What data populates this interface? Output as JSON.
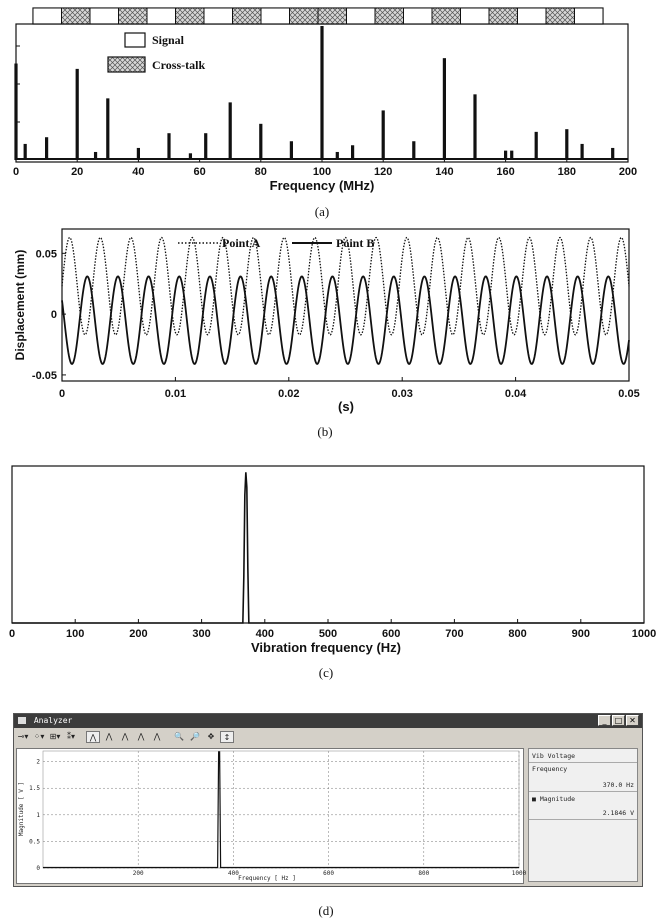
{
  "panel_a": {
    "caption": "(a)",
    "legend": {
      "signal": "Signal",
      "crosstalk": "Cross-talk"
    },
    "chart_data": {
      "type": "bar",
      "xlabel": "Frequency (MHz)",
      "xlim": [
        0,
        200
      ],
      "ylim": [
        0,
        1
      ],
      "xticks": [
        "0",
        "20",
        "40",
        "60",
        "80",
        "100",
        "120",
        "140",
        "160",
        "180",
        "200"
      ],
      "lines": [
        {
          "x": 0,
          "y": 0.72
        },
        {
          "x": 3,
          "y": 0.12
        },
        {
          "x": 10,
          "y": 0.17
        },
        {
          "x": 20,
          "y": 0.68
        },
        {
          "x": 26,
          "y": 0.06
        },
        {
          "x": 30,
          "y": 0.46
        },
        {
          "x": 40,
          "y": 0.09
        },
        {
          "x": 50,
          "y": 0.2
        },
        {
          "x": 57,
          "y": 0.05
        },
        {
          "x": 62,
          "y": 0.2
        },
        {
          "x": 70,
          "y": 0.43
        },
        {
          "x": 80,
          "y": 0.27
        },
        {
          "x": 90,
          "y": 0.14
        },
        {
          "x": 100,
          "y": 1.0
        },
        {
          "x": 105,
          "y": 0.06
        },
        {
          "x": 110,
          "y": 0.11
        },
        {
          "x": 120,
          "y": 0.37
        },
        {
          "x": 130,
          "y": 0.14
        },
        {
          "x": 140,
          "y": 0.76
        },
        {
          "x": 150,
          "y": 0.49
        },
        {
          "x": 160,
          "y": 0.07
        },
        {
          "x": 162,
          "y": 0.07
        },
        {
          "x": 170,
          "y": 0.21
        },
        {
          "x": 180,
          "y": 0.23
        },
        {
          "x": 185,
          "y": 0.12
        },
        {
          "x": 195,
          "y": 0.09
        }
      ],
      "strip": [
        "signal",
        "crosstalk",
        "signal",
        "crosstalk",
        "signal",
        "crosstalk",
        "signal",
        "crosstalk",
        "signal",
        "crosstalk",
        "crosstalk",
        "signal",
        "crosstalk",
        "signal",
        "crosstalk",
        "signal",
        "crosstalk",
        "signal",
        "crosstalk",
        "signal"
      ]
    }
  },
  "panel_b": {
    "caption": "(b)",
    "chart_data": {
      "type": "line",
      "xlabel": "(s)",
      "ylabel": "Displacement (mm)",
      "xlim": [
        0,
        0.05
      ],
      "ylim": [
        -0.055,
        0.07
      ],
      "xticks": [
        "0",
        "0.01",
        "0.02",
        "0.03",
        "0.04",
        "0.05"
      ],
      "yticks": [
        "0.05",
        "0",
        "-0.05"
      ],
      "series": [
        {
          "name": "Point A",
          "style": "dotted",
          "frequency_hz": 370,
          "amplitude": 0.04,
          "offset": 0.023
        },
        {
          "name": "Point B",
          "style": "solid",
          "frequency_hz": 370,
          "amplitude": 0.036,
          "offset": -0.005
        }
      ]
    }
  },
  "panel_c": {
    "caption": "(c)",
    "chart_data": {
      "type": "line",
      "xlabel": "Vibration frequency (Hz)",
      "xlim": [
        0,
        1000
      ],
      "ylim": [
        0,
        1
      ],
      "xticks": [
        "0",
        "100",
        "200",
        "300",
        "400",
        "500",
        "600",
        "700",
        "800",
        "900",
        "1000"
      ],
      "peak": {
        "x": 370,
        "y": 0.96
      }
    }
  },
  "panel_d": {
    "caption": "(d)",
    "window": {
      "title": "Analyzer"
    },
    "toolbar": [
      "⊸▾",
      "⁘▾",
      "⊞▾",
      "⁑▾",
      "⋀",
      "⋀",
      "⋀",
      "⋀",
      "⋀",
      "🔍",
      "🔎",
      "✥",
      "↕"
    ],
    "side": {
      "header": "Vib Voltage",
      "freq_label": "Frequency",
      "freq_value": "370.0 Hz",
      "mag_label": "Magnitude",
      "mag_value": "2.1846 V"
    },
    "chart_data": {
      "type": "line",
      "xlabel": "Frequency [ Hz ]",
      "ylabel": "Magnitude [ V ]",
      "xlim": [
        0,
        1000
      ],
      "ylim": [
        0,
        2.2
      ],
      "xticks": [
        "200",
        "400",
        "600",
        "800",
        "1000"
      ],
      "yticks": [
        "0",
        "0.5",
        "1",
        "1.5",
        "2"
      ],
      "peak": {
        "x": 370,
        "y": 2.1846
      }
    }
  }
}
